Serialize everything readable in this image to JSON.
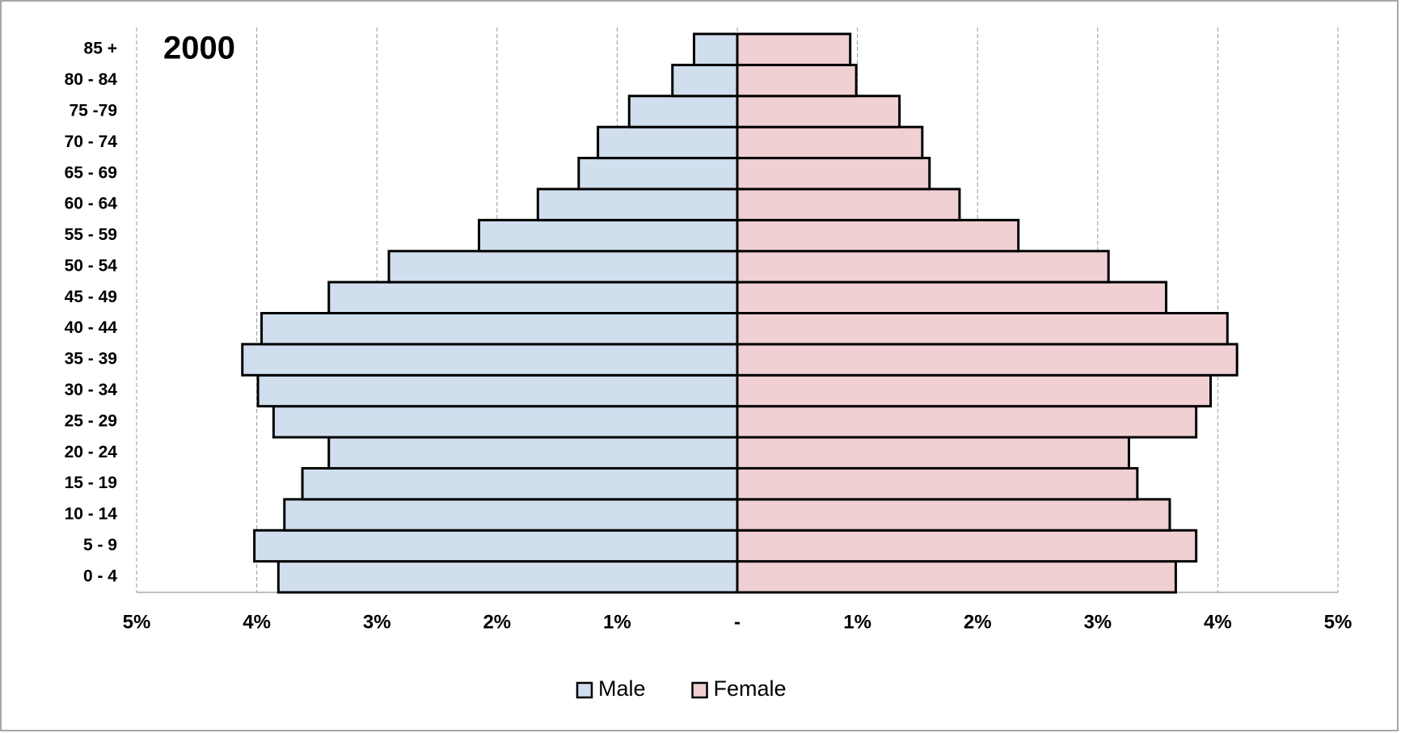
{
  "chart_data": {
    "type": "pyramid",
    "title": "2000",
    "categories": [
      "0 - 4",
      "5 - 9",
      "10 - 14",
      "15 - 19",
      "20 - 24",
      "25 - 29",
      "30 - 34",
      "35 - 39",
      "40 - 44",
      "45 - 49",
      "50 - 54",
      "55 - 59",
      "60 - 64",
      "65 - 69",
      "70 - 74",
      "75 -79",
      "80 - 84",
      "85 +"
    ],
    "series": [
      {
        "name": "Male",
        "color": "#d0deee",
        "values": [
          -3.82,
          -4.02,
          -3.77,
          -3.62,
          -3.4,
          -3.86,
          -3.99,
          -4.12,
          -3.96,
          -3.4,
          -2.9,
          -2.15,
          -1.66,
          -1.32,
          -1.16,
          -0.9,
          -0.54,
          -0.36
        ]
      },
      {
        "name": "Female",
        "color": "#f0d0d2",
        "values": [
          3.65,
          3.82,
          3.6,
          3.33,
          3.26,
          3.82,
          3.94,
          4.16,
          4.08,
          3.57,
          3.09,
          2.34,
          1.85,
          1.6,
          1.54,
          1.35,
          0.99,
          0.94
        ]
      }
    ],
    "xlim": [
      -5,
      5
    ],
    "xticks": [
      {
        "value": -5,
        "label": "5%"
      },
      {
        "value": -4,
        "label": "4%"
      },
      {
        "value": -3,
        "label": "3%"
      },
      {
        "value": -2,
        "label": "2%"
      },
      {
        "value": -1,
        "label": "1%"
      },
      {
        "value": 0,
        "label": "-"
      },
      {
        "value": 1,
        "label": "1%"
      },
      {
        "value": 2,
        "label": "2%"
      },
      {
        "value": 3,
        "label": "3%"
      },
      {
        "value": 4,
        "label": "4%"
      },
      {
        "value": 5,
        "label": "5%"
      }
    ],
    "grid": true,
    "legend": "bottom"
  }
}
